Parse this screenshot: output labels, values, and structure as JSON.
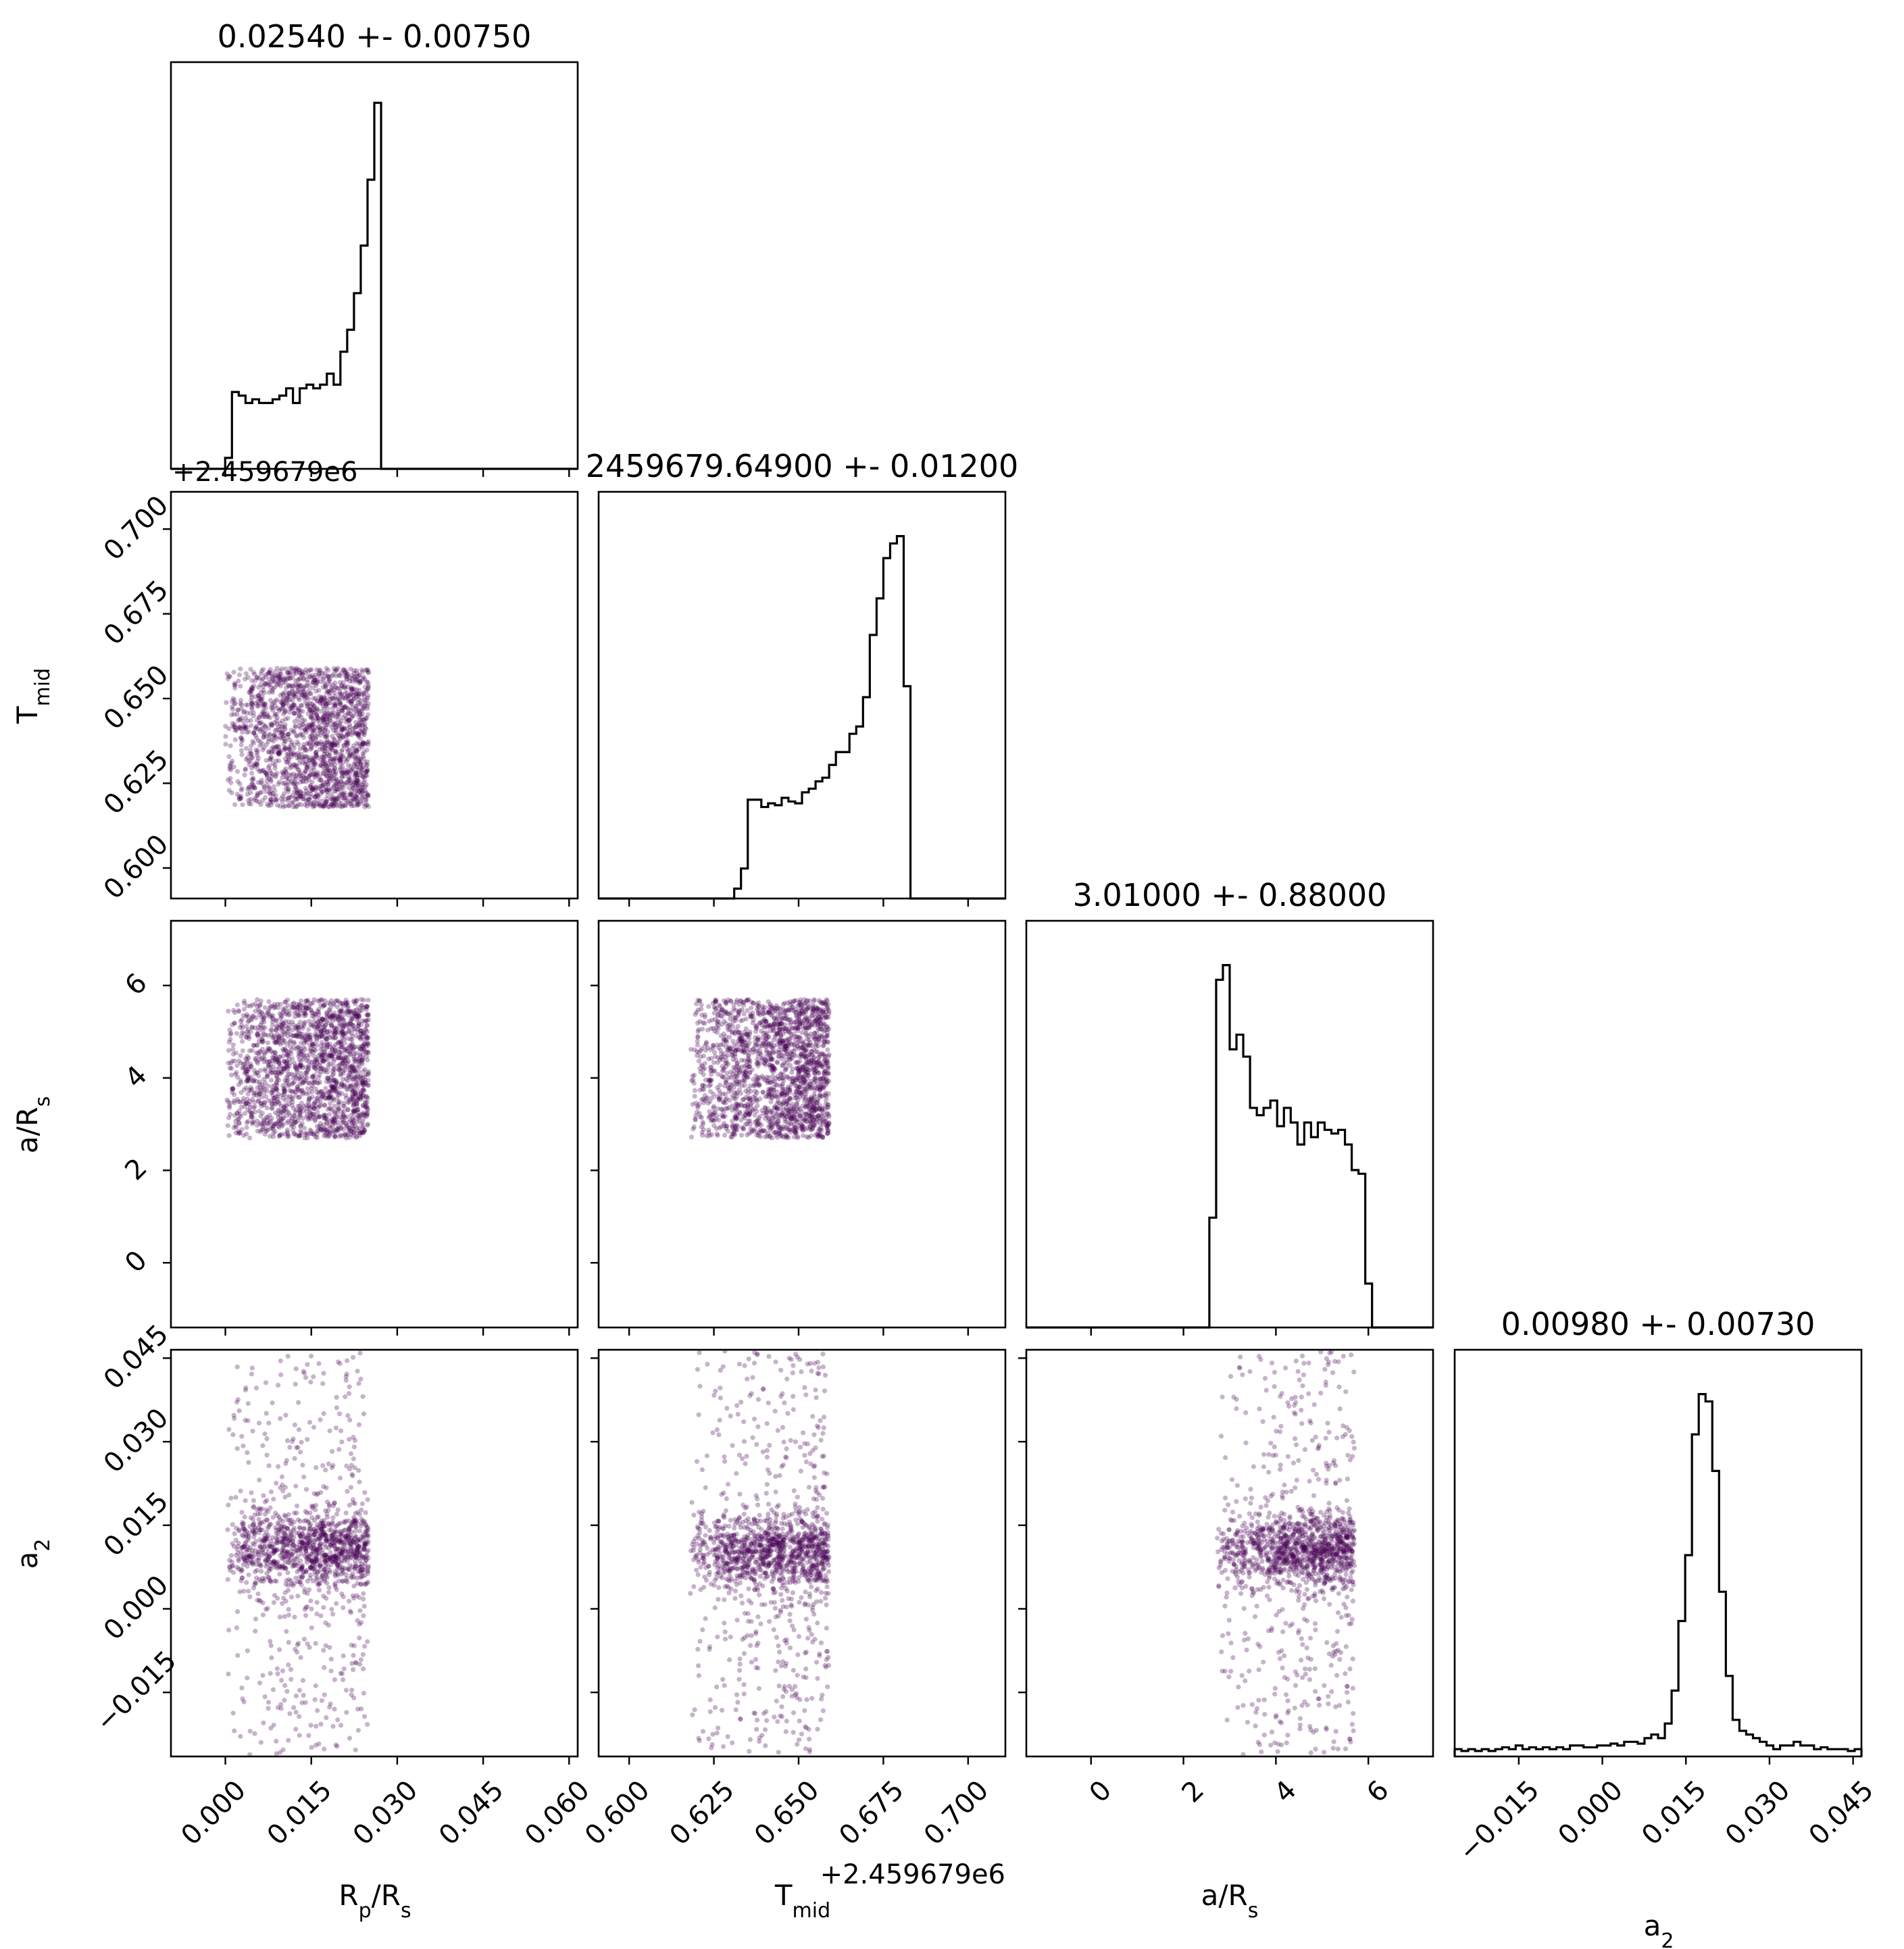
{
  "colors": {
    "hist": "#000000",
    "points": "#440154",
    "axes": "#000000",
    "background": "#ffffff"
  },
  "offset_labels": {
    "row1_y": "+2.459679e6",
    "col1_x": "+2.459679e6"
  },
  "chart_data": {
    "type": "corner",
    "parameters": [
      {
        "name": "Rp/Rs",
        "label_main": "R",
        "label_sub1": "p",
        "label_mid": "/R",
        "label_sub2": "s",
        "range": [
          -0.0095,
          0.0615
        ],
        "ticks": [
          0.0,
          0.015,
          0.03,
          0.045,
          0.06
        ],
        "tick_labels": [
          "0.000",
          "0.015",
          "0.030",
          "0.045",
          "0.060"
        ],
        "title": "0.02540 +- 0.00750"
      },
      {
        "name": "Tmid",
        "label_main": "T",
        "label_sub1": "mid",
        "label_mid": "",
        "label_sub2": "",
        "range": [
          0.591,
          0.711
        ],
        "ticks": [
          0.6,
          0.625,
          0.65,
          0.675,
          0.7
        ],
        "tick_labels": [
          "0.600",
          "0.625",
          "0.650",
          "0.675",
          "0.700"
        ],
        "title": "2459679.64900 +- 0.01200"
      },
      {
        "name": "a/Rs",
        "label_main": "a/R",
        "label_sub1": "s",
        "label_mid": "",
        "label_sub2": "",
        "range": [
          -1.4,
          7.4
        ],
        "ticks": [
          0,
          2,
          4,
          6
        ],
        "tick_labels": [
          "0",
          "2",
          "4",
          "6"
        ],
        "title": "3.01000 +- 0.88000"
      },
      {
        "name": "a2",
        "label_main": "a",
        "label_sub1": "2",
        "label_mid": "",
        "label_sub2": "",
        "range": [
          -0.0265,
          0.0465
        ],
        "ticks": [
          -0.015,
          0.0,
          0.015,
          0.03,
          0.045
        ],
        "tick_labels": [
          "−0.015",
          "0.000",
          "0.015",
          "0.030",
          "0.045"
        ],
        "title": "0.00980 +- 0.00730"
      }
    ],
    "histograms": [
      {
        "edges_range": [
          -0.0095,
          0.0615
        ],
        "bins": 60,
        "counts": [
          0,
          0,
          0,
          0,
          0,
          0,
          0,
          0,
          0.03,
          0.21,
          0.2,
          0.18,
          0.19,
          0.18,
          0.18,
          0.19,
          0.2,
          0.22,
          0.18,
          0.22,
          0.23,
          0.22,
          0.23,
          0.26,
          0.23,
          0.32,
          0.38,
          0.48,
          0.61,
          0.79,
          1.0,
          0,
          0,
          0,
          0,
          0,
          0,
          0,
          0,
          0,
          0,
          0,
          0,
          0,
          0,
          0,
          0,
          0,
          0,
          0,
          0,
          0,
          0,
          0,
          0,
          0,
          0,
          0,
          0,
          0
        ]
      },
      {
        "edges_range": [
          0.591,
          0.711
        ],
        "bins": 60,
        "counts": [
          0,
          0,
          0,
          0,
          0,
          0,
          0,
          0,
          0,
          0,
          0,
          0,
          0,
          0,
          0,
          0,
          0,
          0,
          0,
          0,
          0.027,
          0.082,
          0.27,
          0.27,
          0.25,
          0.26,
          0.255,
          0.275,
          0.265,
          0.26,
          0.29,
          0.3,
          0.32,
          0.33,
          0.365,
          0.4,
          0.4,
          0.45,
          0.47,
          0.55,
          0.72,
          0.82,
          0.93,
          0.97,
          0.99,
          0.58,
          0,
          0,
          0,
          0,
          0,
          0,
          0,
          0,
          0,
          0,
          0,
          0,
          0,
          0
        ]
      },
      {
        "edges_range": [
          -1.4,
          7.4
        ],
        "bins": 60,
        "counts": [
          0,
          0,
          0,
          0,
          0,
          0,
          0,
          0,
          0,
          0,
          0,
          0,
          0,
          0,
          0,
          0,
          0,
          0,
          0,
          0,
          0,
          0,
          0,
          0,
          0,
          0,
          0,
          0.3,
          0.95,
          0.99,
          0.76,
          0.8,
          0.74,
          0.6,
          0.58,
          0.6,
          0.62,
          0.55,
          0.6,
          0.56,
          0.5,
          0.56,
          0.52,
          0.56,
          0.54,
          0.53,
          0.54,
          0.5,
          0.43,
          0.42,
          0.12,
          0,
          0,
          0,
          0,
          0,
          0,
          0,
          0,
          0
        ]
      },
      {
        "edges_range": [
          -0.0265,
          0.0465
        ],
        "bins": 60,
        "counts": [
          0.02,
          0.015,
          0.02,
          0.015,
          0.02,
          0.015,
          0.02,
          0.025,
          0.02,
          0.03,
          0.02,
          0.025,
          0.02,
          0.025,
          0.02,
          0.025,
          0.02,
          0.03,
          0.03,
          0.025,
          0.025,
          0.03,
          0.03,
          0.035,
          0.03,
          0.04,
          0.04,
          0.035,
          0.05,
          0.06,
          0.05,
          0.09,
          0.18,
          0.37,
          0.55,
          0.88,
          0.99,
          0.97,
          0.78,
          0.45,
          0.22,
          0.1,
          0.07,
          0.06,
          0.05,
          0.04,
          0.03,
          0.02,
          0.03,
          0.03,
          0.04,
          0.03,
          0.03,
          0.02,
          0.025,
          0.02,
          0.02,
          0.02,
          0.015,
          0.02
        ]
      }
    ],
    "scatter_regions": {
      "Rp/Rs": [
        0.0,
        0.025
      ],
      "Tmid": [
        0.618,
        0.659
      ],
      "a/Rs": [
        2.7,
        5.7
      ],
      "a2": {
        "core": [
          0.003,
          0.018
        ],
        "tails": [
          -0.0265,
          0.0465
        ]
      }
    }
  }
}
